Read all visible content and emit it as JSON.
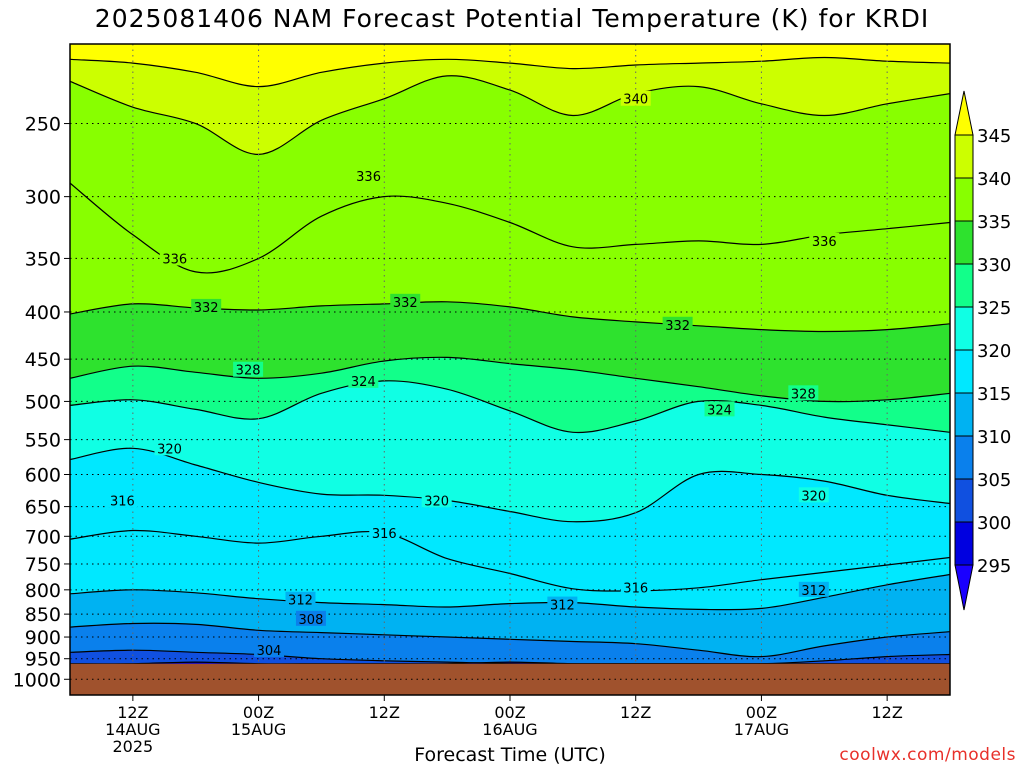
{
  "title": "2025081406 NAM Forecast Potential Temperature (K) for KRDI",
  "credit": "coolwx.com/models",
  "chart_data": {
    "type": "heatmap",
    "title": "2025081406 NAM Forecast Potential Temperature (K) for KRDI",
    "xlabel": "Forecast Time (UTC)",
    "ylabel": "",
    "x_range_hours": [
      0,
      84
    ],
    "y_axis": {
      "scale": "log",
      "range_hPa": [
        1040,
        205
      ],
      "ticks": [
        250,
        300,
        350,
        400,
        450,
        500,
        550,
        600,
        650,
        700,
        750,
        800,
        850,
        900,
        950,
        1000
      ],
      "inverted": true
    },
    "x_ticks": [
      {
        "hour": 6,
        "label": "12Z",
        "sub1": "14AUG",
        "sub2": "2025"
      },
      {
        "hour": 18,
        "label": "00Z",
        "sub1": "15AUG",
        "sub2": ""
      },
      {
        "hour": 30,
        "label": "12Z",
        "sub1": "",
        "sub2": ""
      },
      {
        "hour": 42,
        "label": "00Z",
        "sub1": "16AUG",
        "sub2": ""
      },
      {
        "hour": 54,
        "label": "12Z",
        "sub1": "",
        "sub2": ""
      },
      {
        "hour": 66,
        "label": "00Z",
        "sub1": "17AUG",
        "sub2": ""
      },
      {
        "hour": 78,
        "label": "12Z",
        "sub1": "",
        "sub2": ""
      }
    ],
    "surface_pressure_hPa": 962,
    "grid": true,
    "colorbar": {
      "ticks": [
        345,
        340,
        335,
        330,
        325,
        320,
        315,
        310,
        305,
        300,
        295
      ],
      "bands": [
        {
          "min": 345,
          "max": 350,
          "color": "#ffff00"
        },
        {
          "min": 340,
          "max": 345,
          "color": "#ccff00"
        },
        {
          "min": 335,
          "max": 340,
          "color": "#88ff00"
        },
        {
          "min": 330,
          "max": 335,
          "color": "#2ee22e"
        },
        {
          "min": 325,
          "max": 330,
          "color": "#12ff8a"
        },
        {
          "min": 320,
          "max": 325,
          "color": "#10ffe4"
        },
        {
          "min": 315,
          "max": 320,
          "color": "#00e8ff"
        },
        {
          "min": 310,
          "max": 315,
          "color": "#00b2f2"
        },
        {
          "min": 305,
          "max": 310,
          "color": "#0a80ec"
        },
        {
          "min": 300,
          "max": 305,
          "color": "#1050e0"
        },
        {
          "min": 295,
          "max": 300,
          "color": "#0000e0"
        },
        {
          "min": 290,
          "max": 295,
          "color": "#1a00ff"
        }
      ]
    },
    "contours": [
      {
        "value": 300,
        "pressure": [
          962,
          962,
          958,
          962,
          962,
          962,
          962,
          958,
          962,
          962,
          962,
          962,
          962,
          962,
          962
        ]
      },
      {
        "value": 304,
        "pressure": [
          935,
          930,
          935,
          940,
          950,
          955,
          958,
          962,
          962,
          962,
          962,
          962,
          955,
          945,
          940
        ]
      },
      {
        "value": 308,
        "pressure": [
          878,
          870,
          872,
          885,
          890,
          895,
          900,
          905,
          910,
          915,
          930,
          945,
          920,
          900,
          888
        ]
      },
      {
        "value": 312,
        "pressure": [
          808,
          800,
          806,
          818,
          826,
          830,
          835,
          828,
          826,
          835,
          840,
          838,
          815,
          790,
          770
        ]
      },
      {
        "value": 316,
        "pressure": [
          705,
          690,
          700,
          712,
          700,
          694,
          740,
          768,
          798,
          802,
          796,
          780,
          766,
          752,
          738
        ]
      },
      {
        "value": 320,
        "pressure": [
          578,
          562,
          586,
          612,
          630,
          632,
          640,
          658,
          675,
          660,
          600,
          600,
          610,
          632,
          645
        ]
      },
      {
        "value": 324,
        "pressure": [
          505,
          498,
          510,
          522,
          490,
          475,
          485,
          512,
          540,
          525,
          500,
          505,
          520,
          530,
          540
        ]
      },
      {
        "value": 328,
        "pressure": [
          472,
          458,
          465,
          472,
          466,
          452,
          448,
          455,
          462,
          472,
          482,
          493,
          500,
          498,
          490
        ]
      },
      {
        "value": 332,
        "pressure": [
          402,
          392,
          396,
          398,
          394,
          392,
          390,
          395,
          405,
          410,
          414,
          418,
          420,
          418,
          412
        ]
      },
      {
        "value": 336,
        "pressure": [
          290,
          330,
          362,
          350,
          315,
          300,
          305,
          320,
          340,
          338,
          335,
          338,
          330,
          325,
          320
        ]
      },
      {
        "value": 340,
        "pressure": [
          225,
          240,
          250,
          270,
          248,
          235,
          222,
          230,
          245,
          232,
          228,
          238,
          245,
          238,
          232
        ]
      },
      {
        "value": 344,
        "pressure": [
          213,
          215,
          220,
          228,
          220,
          215,
          213,
          215,
          218,
          216,
          215,
          214,
          212,
          214,
          215
        ]
      }
    ],
    "contour_labels": [
      {
        "text": "340",
        "hour": 54,
        "pressure": 235
      },
      {
        "text": "336",
        "hour": 28.5,
        "pressure": 285
      },
      {
        "text": "336",
        "hour": 10,
        "pressure": 350
      },
      {
        "text": "336",
        "hour": 72,
        "pressure": 335
      },
      {
        "text": "332",
        "hour": 13,
        "pressure": 395
      },
      {
        "text": "332",
        "hour": 32,
        "pressure": 390
      },
      {
        "text": "332",
        "hour": 58,
        "pressure": 413
      },
      {
        "text": "328",
        "hour": 17,
        "pressure": 462
      },
      {
        "text": "328",
        "hour": 70,
        "pressure": 490
      },
      {
        "text": "324",
        "hour": 28,
        "pressure": 475
      },
      {
        "text": "324",
        "hour": 62,
        "pressure": 510
      },
      {
        "text": "320",
        "hour": 9.5,
        "pressure": 562
      },
      {
        "text": "320",
        "hour": 35,
        "pressure": 640
      },
      {
        "text": "320",
        "hour": 71,
        "pressure": 632
      },
      {
        "text": "316",
        "hour": 5,
        "pressure": 640
      },
      {
        "text": "316",
        "hour": 30,
        "pressure": 694
      },
      {
        "text": "316",
        "hour": 54,
        "pressure": 795
      },
      {
        "text": "312",
        "hour": 22,
        "pressure": 820
      },
      {
        "text": "312",
        "hour": 47,
        "pressure": 830
      },
      {
        "text": "312",
        "hour": 71,
        "pressure": 800
      },
      {
        "text": "308",
        "hour": 23,
        "pressure": 860
      },
      {
        "text": "304",
        "hour": 19,
        "pressure": 930
      }
    ]
  }
}
